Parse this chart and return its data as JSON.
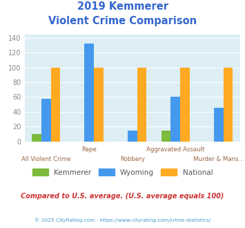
{
  "title_line1": "2019 Kemmerer",
  "title_line2": "Violent Crime Comparison",
  "categories": [
    "All Violent Crime",
    "Rape",
    "Robbery",
    "Aggravated Assault",
    "Murder & Mans..."
  ],
  "kemmerer": [
    10,
    0,
    0,
    15,
    0
  ],
  "wyoming": [
    58,
    132,
    15,
    60,
    45
  ],
  "national": [
    100,
    100,
    100,
    100,
    100
  ],
  "colors": {
    "kemmerer": "#7cbb3c",
    "wyoming": "#4499ee",
    "national": "#ffaa22"
  },
  "ylim": [
    0,
    145
  ],
  "yticks": [
    0,
    20,
    40,
    60,
    80,
    100,
    120,
    140
  ],
  "footnote": "Compared to U.S. average. (U.S. average equals 100)",
  "copyright": "© 2025 CityRating.com - https://www.cityrating.com/crime-statistics/",
  "title_color": "#3366cc",
  "footnote_color": "#cc3333",
  "copyright_color": "#4499cc",
  "bg_color": "#ddeef5",
  "category_label_color": "#996644",
  "ytick_color": "#888888"
}
